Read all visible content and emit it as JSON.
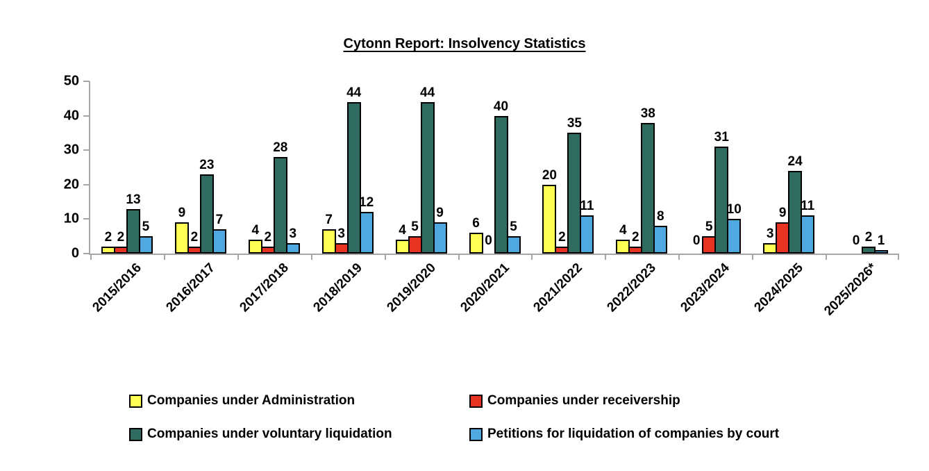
{
  "title": "Cytonn Report: Insolvency Statistics",
  "colors": {
    "administration": "#FFFF54",
    "receivership": "#E63322",
    "voluntary_liquidation": "#2F6B5E",
    "petitions_court": "#4FA8E0",
    "axis": "#A6A6A6",
    "bar_border": "#000000",
    "text": "#000000"
  },
  "y_axis": {
    "min": 0,
    "max": 50,
    "step": 10,
    "ticks": [
      0,
      10,
      20,
      30,
      40,
      50
    ]
  },
  "chart_data": {
    "type": "bar",
    "title": "Cytonn Report: Insolvency Statistics",
    "categories": [
      "2015/2016",
      "2016/2017",
      "2017/2018",
      "2018/2019",
      "2019/2020",
      "2020/2021",
      "2021/2022",
      "2022/2023",
      "2023/2024",
      "2024/2025",
      "2025/2026*"
    ],
    "series": [
      {
        "key": "administration",
        "name": "Companies under Administration",
        "color": "#FFFF54",
        "values": [
          2,
          9,
          4,
          7,
          4,
          6,
          20,
          4,
          0,
          3,
          null
        ]
      },
      {
        "key": "receivership",
        "name": "Companies under receivership",
        "color": "#E63322",
        "values": [
          2,
          2,
          2,
          3,
          5,
          0,
          2,
          2,
          5,
          9,
          0
        ]
      },
      {
        "key": "voluntary-liquidation",
        "name": "Companies under voluntary liquidation",
        "color": "#2F6B5E",
        "values": [
          13,
          23,
          28,
          44,
          44,
          40,
          35,
          38,
          31,
          24,
          2
        ]
      },
      {
        "key": "petitions-court",
        "name": "Petitions for liquidation of companies by court",
        "color": "#4FA8E0",
        "values": [
          5,
          7,
          3,
          12,
          9,
          5,
          11,
          8,
          10,
          11,
          1
        ]
      }
    ],
    "ylim": [
      0,
      50
    ],
    "grid": false,
    "data_labels": true,
    "legend_position": "bottom"
  },
  "legend": {
    "items": [
      {
        "key": "administration",
        "label": "Companies under Administration",
        "color": "#FFFF54"
      },
      {
        "key": "receivership",
        "label": "Companies under receivership",
        "color": "#E63322"
      },
      {
        "key": "voluntary-liquidation",
        "label": "Companies under voluntary liquidation",
        "color": "#2F6B5E"
      },
      {
        "key": "petitions-court",
        "label": "Petitions for liquidation of companies by court",
        "color": "#4FA8E0"
      }
    ]
  }
}
